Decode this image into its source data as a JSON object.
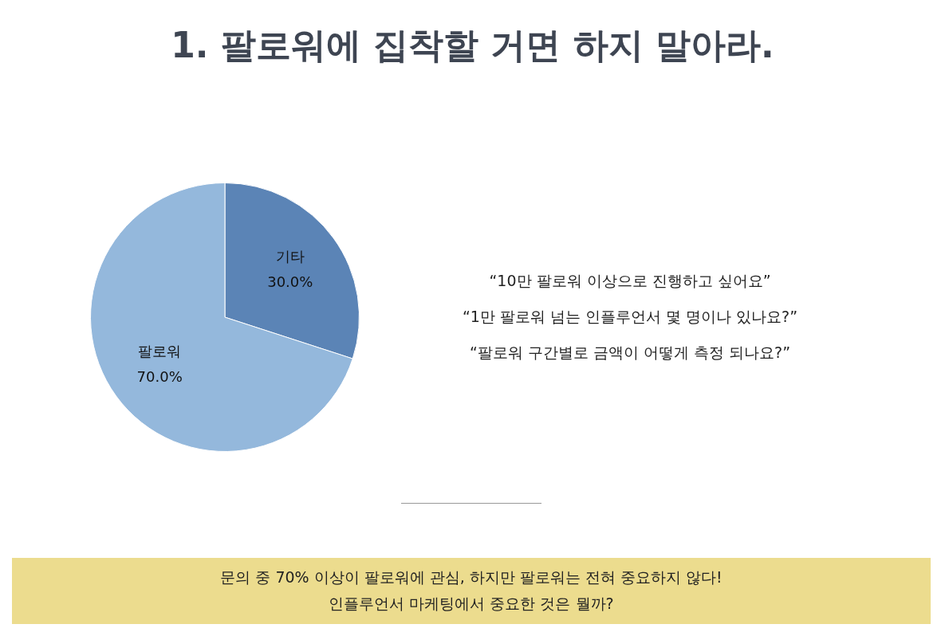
{
  "chart_data": {
    "type": "pie",
    "title": "1. 팔로워에 집착할 거면 하지 말아라.",
    "categories": [
      "기타",
      "팔로워"
    ],
    "values": [
      30,
      70
    ],
    "value_labels": [
      "30.0%",
      "70.0%"
    ],
    "colors": [
      "#5b84b6",
      "#94b8dc"
    ],
    "legend": false,
    "annotations": [
      "“10만 팔로워 이상으로 진행하고 싶어요”",
      "“1만 팔로워 넘는 인플루언서 몇 명이나 있나요?”",
      "“팔로워 구간별로 금액이 어떻게 측정 되나요?”",
      "문의 중 70% 이상이 팔로워에 관심, 하지만 팔로워는 전혀 중요하지 않다!",
      "인플루언서 마케팅에서 중요한 것은 뭘까?"
    ]
  }
}
